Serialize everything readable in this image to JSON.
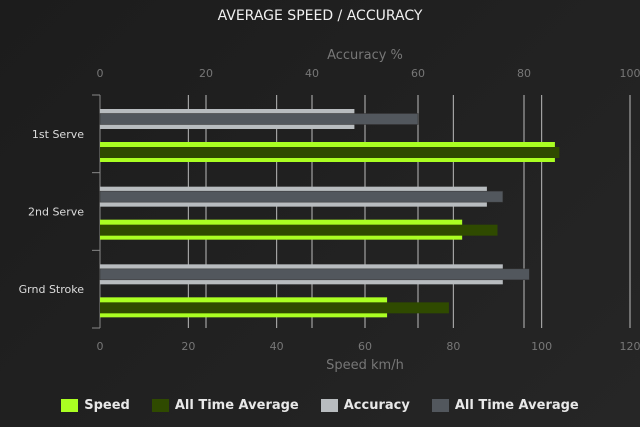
{
  "chart_data": {
    "type": "bar",
    "orientation": "horizontal",
    "title": "AVERAGE SPEED / ACCURACY",
    "categories": [
      "1st Serve",
      "2nd Serve",
      "Grnd Stroke"
    ],
    "top_axis": {
      "label": "Accuracy %",
      "range": [
        0,
        100
      ],
      "ticks": [
        "0",
        "20",
        "40",
        "60",
        "80",
        "100"
      ]
    },
    "bottom_axis": {
      "label": "Speed km/h",
      "range": [
        0,
        120
      ],
      "ticks": [
        "0",
        "20",
        "40",
        "60",
        "80",
        "100",
        "120"
      ]
    },
    "series": [
      {
        "name": "Speed",
        "axis": "bottom",
        "color": "#aaff22",
        "values": [
          103,
          82,
          65
        ]
      },
      {
        "name": "All Time Average",
        "axis": "bottom",
        "color": "#2f4a00",
        "values": [
          104,
          90,
          79
        ]
      },
      {
        "name": "Accuracy",
        "axis": "top",
        "color": "#b8bcbf",
        "values": [
          48,
          73,
          76
        ]
      },
      {
        "name": "All Time Average",
        "axis": "top",
        "color": "#52575d",
        "values": [
          60,
          76,
          81
        ]
      }
    ],
    "grid": true,
    "legend": "bottom"
  }
}
